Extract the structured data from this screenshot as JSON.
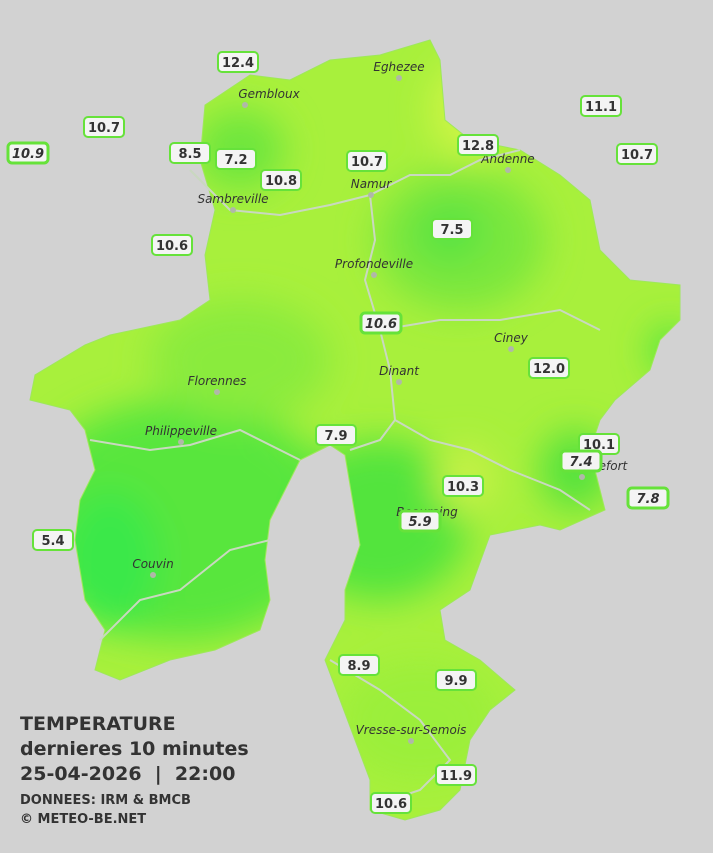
{
  "legend": {
    "title": "TEMPERATURE",
    "subtitle": "dernieres 10 minutes",
    "datetime": "25-04-2026  |  22:00",
    "source": "DONNEES: IRM & BMCB",
    "copyright": "© METEO-BE.NET"
  },
  "cities": [
    "Eghezee",
    "Gembloux",
    "Andenne",
    "Namur",
    "Sambreville",
    "Profondeville",
    "Ciney",
    "Dinant",
    "Florennes",
    "Philippeville",
    "Rochefort",
    "Beauraing",
    "Couvin",
    "Vresse-sur-Semois"
  ],
  "stations": [
    {
      "label": "12.4"
    },
    {
      "label": "10.7"
    },
    {
      "label": "10.9",
      "italic": true
    },
    {
      "label": "8.5"
    },
    {
      "label": "7.2"
    },
    {
      "label": "10.8"
    },
    {
      "label": "10.7"
    },
    {
      "label": "12.8"
    },
    {
      "label": "11.1"
    },
    {
      "label": "10.7"
    },
    {
      "label": "7.5"
    },
    {
      "label": "10.6"
    },
    {
      "label": "10.6",
      "italic": true
    },
    {
      "label": "12.0"
    },
    {
      "label": "7.9"
    },
    {
      "label": "10.1"
    },
    {
      "label": "7.4",
      "italic": true
    },
    {
      "label": "10.3"
    },
    {
      "label": "7.8",
      "italic": true
    },
    {
      "label": "5.4"
    },
    {
      "label": "5.9",
      "italic": true
    },
    {
      "label": "8.9"
    },
    {
      "label": "9.9"
    },
    {
      "label": "11.9"
    },
    {
      "label": "10.6"
    }
  ]
}
